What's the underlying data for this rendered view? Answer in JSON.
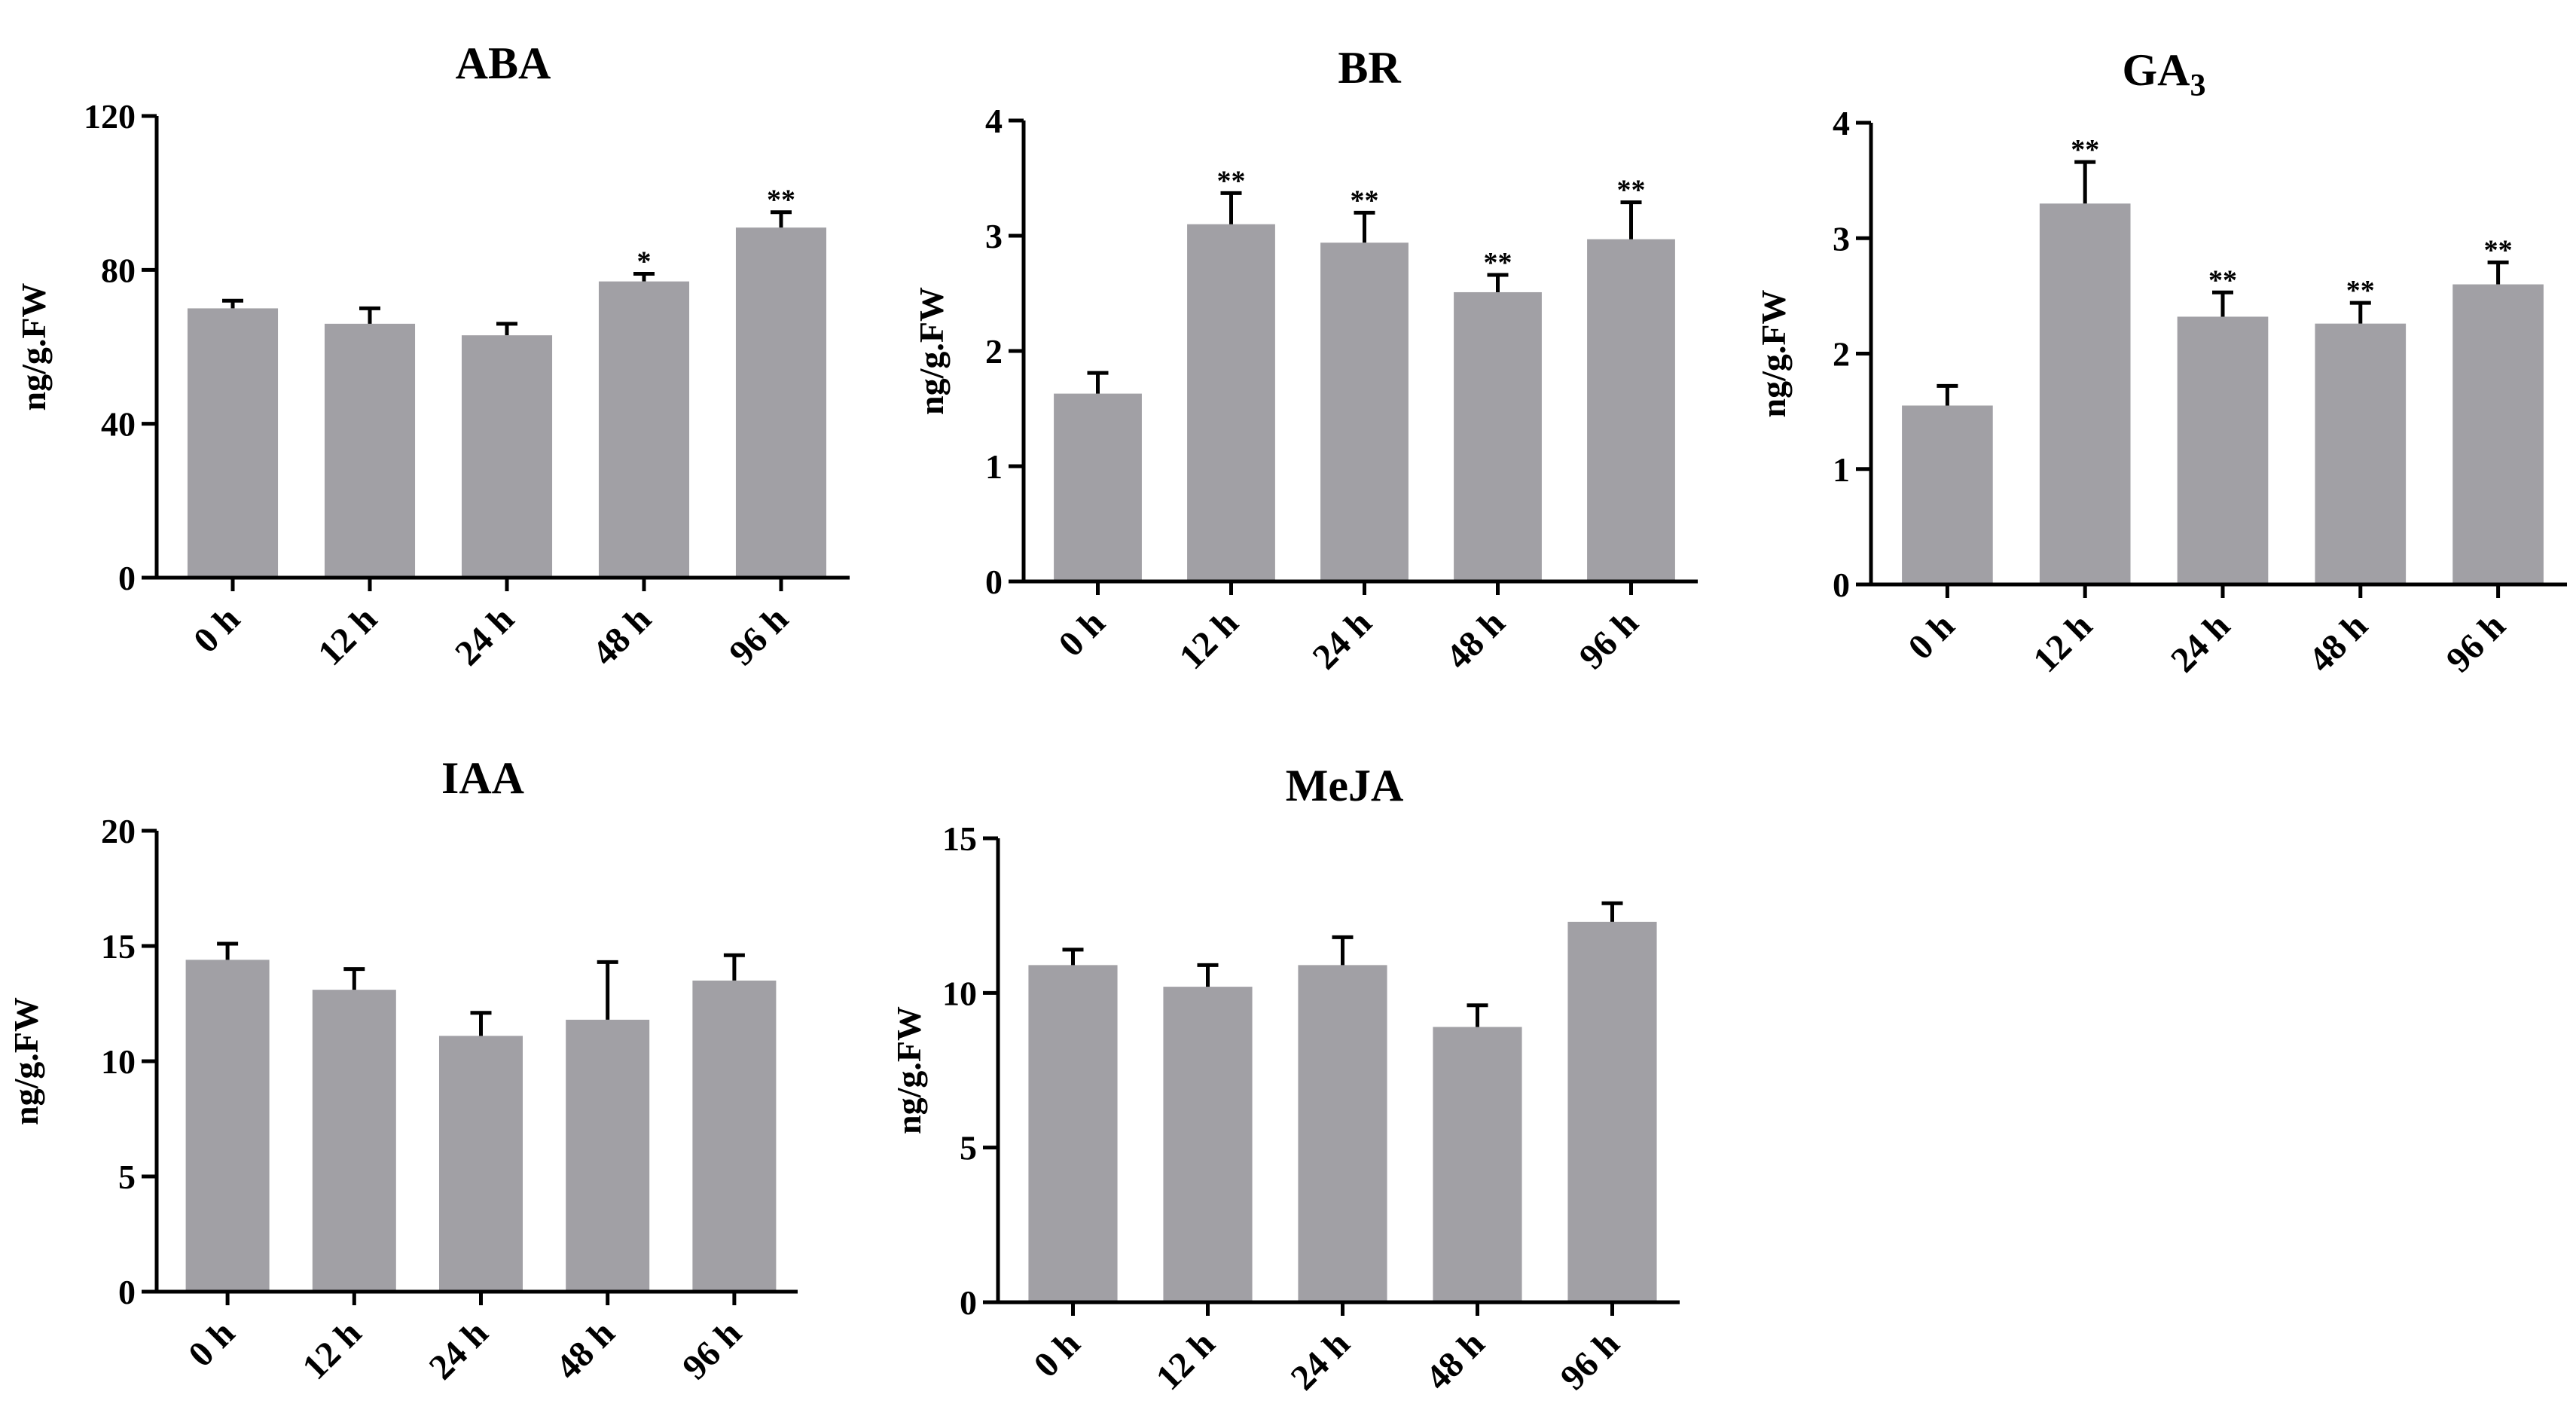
{
  "chart_data": [
    {
      "type": "bar",
      "title": "ABA",
      "ylabel": "ng/g.FW",
      "categories": [
        "0 h",
        "12 h",
        "24 h",
        "48 h",
        "96 h"
      ],
      "values": [
        70,
        66,
        63,
        77,
        91
      ],
      "errors": [
        2,
        4,
        3,
        2,
        4
      ],
      "significance": [
        "",
        "",
        "",
        "*",
        "**"
      ],
      "ylim": [
        0,
        120
      ],
      "yticks": [
        0,
        40,
        80,
        120
      ]
    },
    {
      "type": "bar",
      "title": "BR",
      "ylabel": "ng/g.FW",
      "categories": [
        "0 h",
        "12 h",
        "24 h",
        "48 h",
        "96 h"
      ],
      "values": [
        1.63,
        3.1,
        2.94,
        2.51,
        2.97
      ],
      "errors": [
        0.18,
        0.27,
        0.26,
        0.15,
        0.32
      ],
      "significance": [
        "",
        "**",
        "**",
        "**",
        "**"
      ],
      "ylim": [
        0,
        4
      ],
      "yticks": [
        0,
        1,
        2,
        3,
        4
      ]
    },
    {
      "type": "bar",
      "title": "GA",
      "title_subscript": "3",
      "ylabel": "ng/g.FW",
      "categories": [
        "0 h",
        "12 h",
        "24 h",
        "48 h",
        "96 h"
      ],
      "values": [
        1.55,
        3.3,
        2.32,
        2.26,
        2.6
      ],
      "errors": [
        0.17,
        0.36,
        0.21,
        0.18,
        0.19
      ],
      "significance": [
        "",
        "**",
        "**",
        "**",
        "**"
      ],
      "ylim": [
        0,
        4
      ],
      "yticks": [
        0,
        1,
        2,
        3,
        4
      ]
    },
    {
      "type": "bar",
      "title": "IAA",
      "ylabel": "ng/g.FW",
      "categories": [
        "0 h",
        "12 h",
        "24 h",
        "48 h",
        "96 h"
      ],
      "values": [
        14.4,
        13.1,
        11.1,
        11.8,
        13.5
      ],
      "errors": [
        0.7,
        0.9,
        1.0,
        2.5,
        1.1
      ],
      "significance": [
        "",
        "",
        "",
        "",
        ""
      ],
      "ylim": [
        0,
        20
      ],
      "yticks": [
        0,
        5,
        10,
        15,
        20
      ]
    },
    {
      "type": "bar",
      "title": "MeJA",
      "ylabel": "ng/g.FW",
      "categories": [
        "0 h",
        "12 h",
        "24 h",
        "48 h",
        "96 h"
      ],
      "values": [
        10.9,
        10.2,
        10.9,
        8.9,
        12.3
      ],
      "errors": [
        0.5,
        0.7,
        0.9,
        0.7,
        0.6
      ],
      "significance": [
        "",
        "",
        "",
        "",
        ""
      ],
      "ylim": [
        0,
        15
      ],
      "yticks": [
        0,
        5,
        10,
        15
      ]
    }
  ]
}
